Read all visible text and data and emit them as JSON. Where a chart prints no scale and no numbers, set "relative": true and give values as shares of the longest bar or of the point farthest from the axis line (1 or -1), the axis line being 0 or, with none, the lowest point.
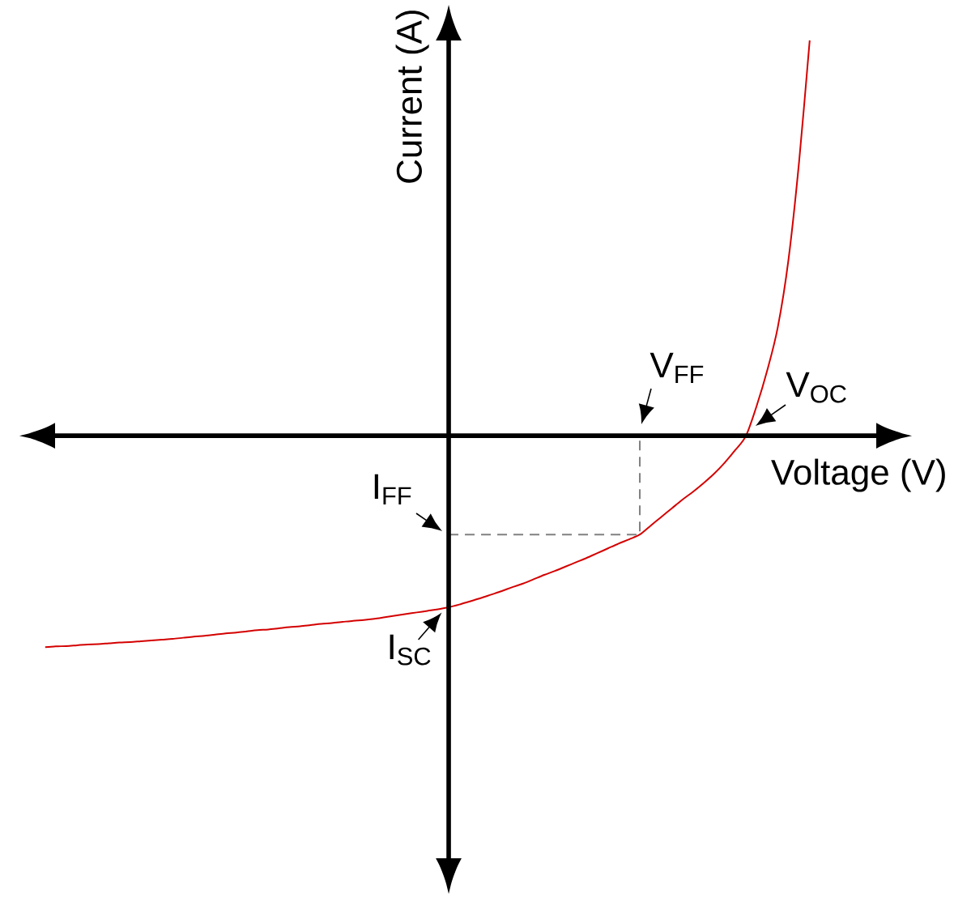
{
  "chart_data": {
    "type": "line",
    "relative": true,
    "xlabel": "Voltage (V)",
    "ylabel": "Current (A)",
    "marker": "none",
    "categories": [
      null,
      null,
      null,
      null,
      null,
      null,
      null,
      null,
      null,
      null,
      null,
      null,
      null,
      null,
      null,
      null,
      null,
      null,
      null,
      null,
      null,
      null,
      null,
      null,
      null,
      null,
      null,
      null,
      null,
      null,
      null,
      null,
      null,
      null,
      null,
      null,
      null,
      null,
      null,
      null,
      null,
      null,
      null,
      null,
      null,
      null,
      null,
      null,
      null,
      null,
      null,
      null,
      null,
      null,
      null,
      null,
      null,
      null,
      null,
      null,
      null,
      null,
      null,
      null,
      null,
      null,
      null,
      null,
      null,
      null,
      null,
      null,
      null
    ],
    "series": [
      {
        "color": "#d40000",
        "values": [
          -0.535,
          -0.533,
          -0.532,
          -0.53,
          -0.528,
          -0.527,
          -0.525,
          -0.523,
          -0.522,
          -0.52,
          -0.518,
          -0.516,
          -0.514,
          -0.511,
          -0.508,
          -0.506,
          -0.503,
          -0.5,
          -0.498,
          -0.495,
          -0.492,
          -0.49,
          -0.487,
          -0.484,
          -0.482,
          -0.479,
          -0.476,
          -0.474,
          -0.471,
          -0.468,
          -0.466,
          -0.463,
          -0.459,
          -0.455,
          -0.451,
          -0.447,
          -0.443,
          -0.439,
          -0.434,
          -0.427,
          -0.419,
          -0.411,
          -0.402,
          -0.393,
          -0.383,
          -0.374,
          -0.363,
          -0.352,
          -0.342,
          -0.331,
          -0.32,
          -0.309,
          -0.297,
          -0.285,
          -0.273,
          -0.262,
          -0.25,
          -0.228,
          -0.206,
          -0.184,
          -0.162,
          -0.142,
          -0.12,
          -0.096,
          -0.068,
          -0.036,
          0,
          0.075,
          0.165,
          0.275,
          0.445,
          0.693,
          1
        ]
      },
      {
        "type": "step",
        "color": "#808080",
        "line_style": "dashed",
        "values": [
          null,
          null,
          null,
          null,
          null,
          null,
          null,
          null,
          null,
          null,
          null,
          null,
          null,
          null,
          null,
          null,
          null,
          null,
          null,
          null,
          null,
          null,
          null,
          null,
          null,
          null,
          null,
          null,
          null,
          null,
          null,
          null,
          null,
          null,
          null,
          null,
          null,
          null,
          -0.25,
          -0.25,
          -0.25,
          -0.25,
          -0.25,
          -0.25,
          -0.25,
          -0.25,
          -0.25,
          -0.25,
          -0.25,
          -0.25,
          -0.25,
          -0.25,
          -0.25,
          -0.25,
          -0.25,
          -0.25,
          0,
          null,
          null,
          null,
          null,
          null,
          null,
          null,
          null,
          null,
          null,
          null,
          null,
          null,
          null,
          null,
          null
        ]
      }
    ],
    "annotations": [
      "V$_{FF}$",
      "V$_{OC}$",
      "I$_{FF}$",
      "I$_{SC}$"
    ]
  }
}
